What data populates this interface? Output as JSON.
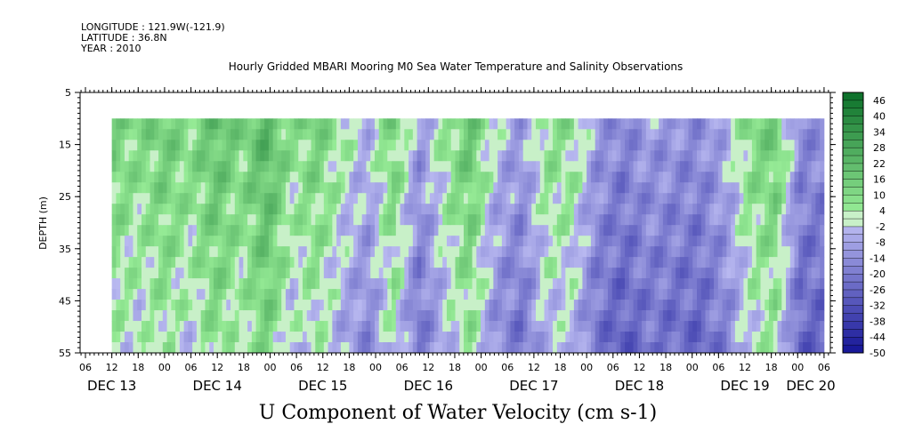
{
  "header": {
    "longitude": "LONGITUDE : 121.9W(-121.9)",
    "latitude": "LATITUDE : 36.8N",
    "year": "YEAR : 2010"
  },
  "chart_data": {
    "type": "heatmap",
    "title": "Hourly Gridded MBARI Mooring M0 Sea Water Temperature and Salinity Observations",
    "xlabel": "U Component of Water Velocity (cm s-1)",
    "ylabel": "DEPTH (m)",
    "ylim": [
      5,
      55
    ],
    "y_reversed": true,
    "y_ticks": [
      "5",
      "15",
      "25",
      "35",
      "45",
      "55"
    ],
    "x_hour_ticks": [
      "06",
      "12",
      "18",
      "00",
      "06",
      "12",
      "18",
      "00",
      "06",
      "12",
      "18",
      "00",
      "06",
      "12",
      "18",
      "00",
      "06",
      "12",
      "18",
      "00",
      "06",
      "12",
      "18",
      "00",
      "06",
      "12",
      "18",
      "00",
      "06"
    ],
    "x_day_labels": [
      "DEC 13",
      "DEC 14",
      "DEC 15",
      "DEC 16",
      "DEC 17",
      "DEC 18",
      "DEC 19",
      "DEC 20"
    ],
    "colorbar": {
      "labels": [
        "46",
        "40",
        "34",
        "28",
        "22",
        "16",
        "10",
        "4",
        "-2",
        "-8",
        "-14",
        "-20",
        "-26",
        "-32",
        "-38",
        "-44",
        "-50"
      ],
      "range": [
        -50,
        49
      ]
    },
    "field": {
      "depth_range_m": [
        10,
        55
      ],
      "start": "DEC 13 12:00",
      "end": "DEC 20 06:00",
      "surface_u_by_segment": [
        14,
        10,
        16,
        10,
        20,
        12,
        24,
        8,
        14,
        4,
        -4,
        14,
        -10,
        6,
        18,
        -2,
        -10,
        8,
        8,
        -10,
        -16,
        -10,
        -12,
        -14,
        -6,
        10,
        16,
        -14
      ]
    }
  }
}
